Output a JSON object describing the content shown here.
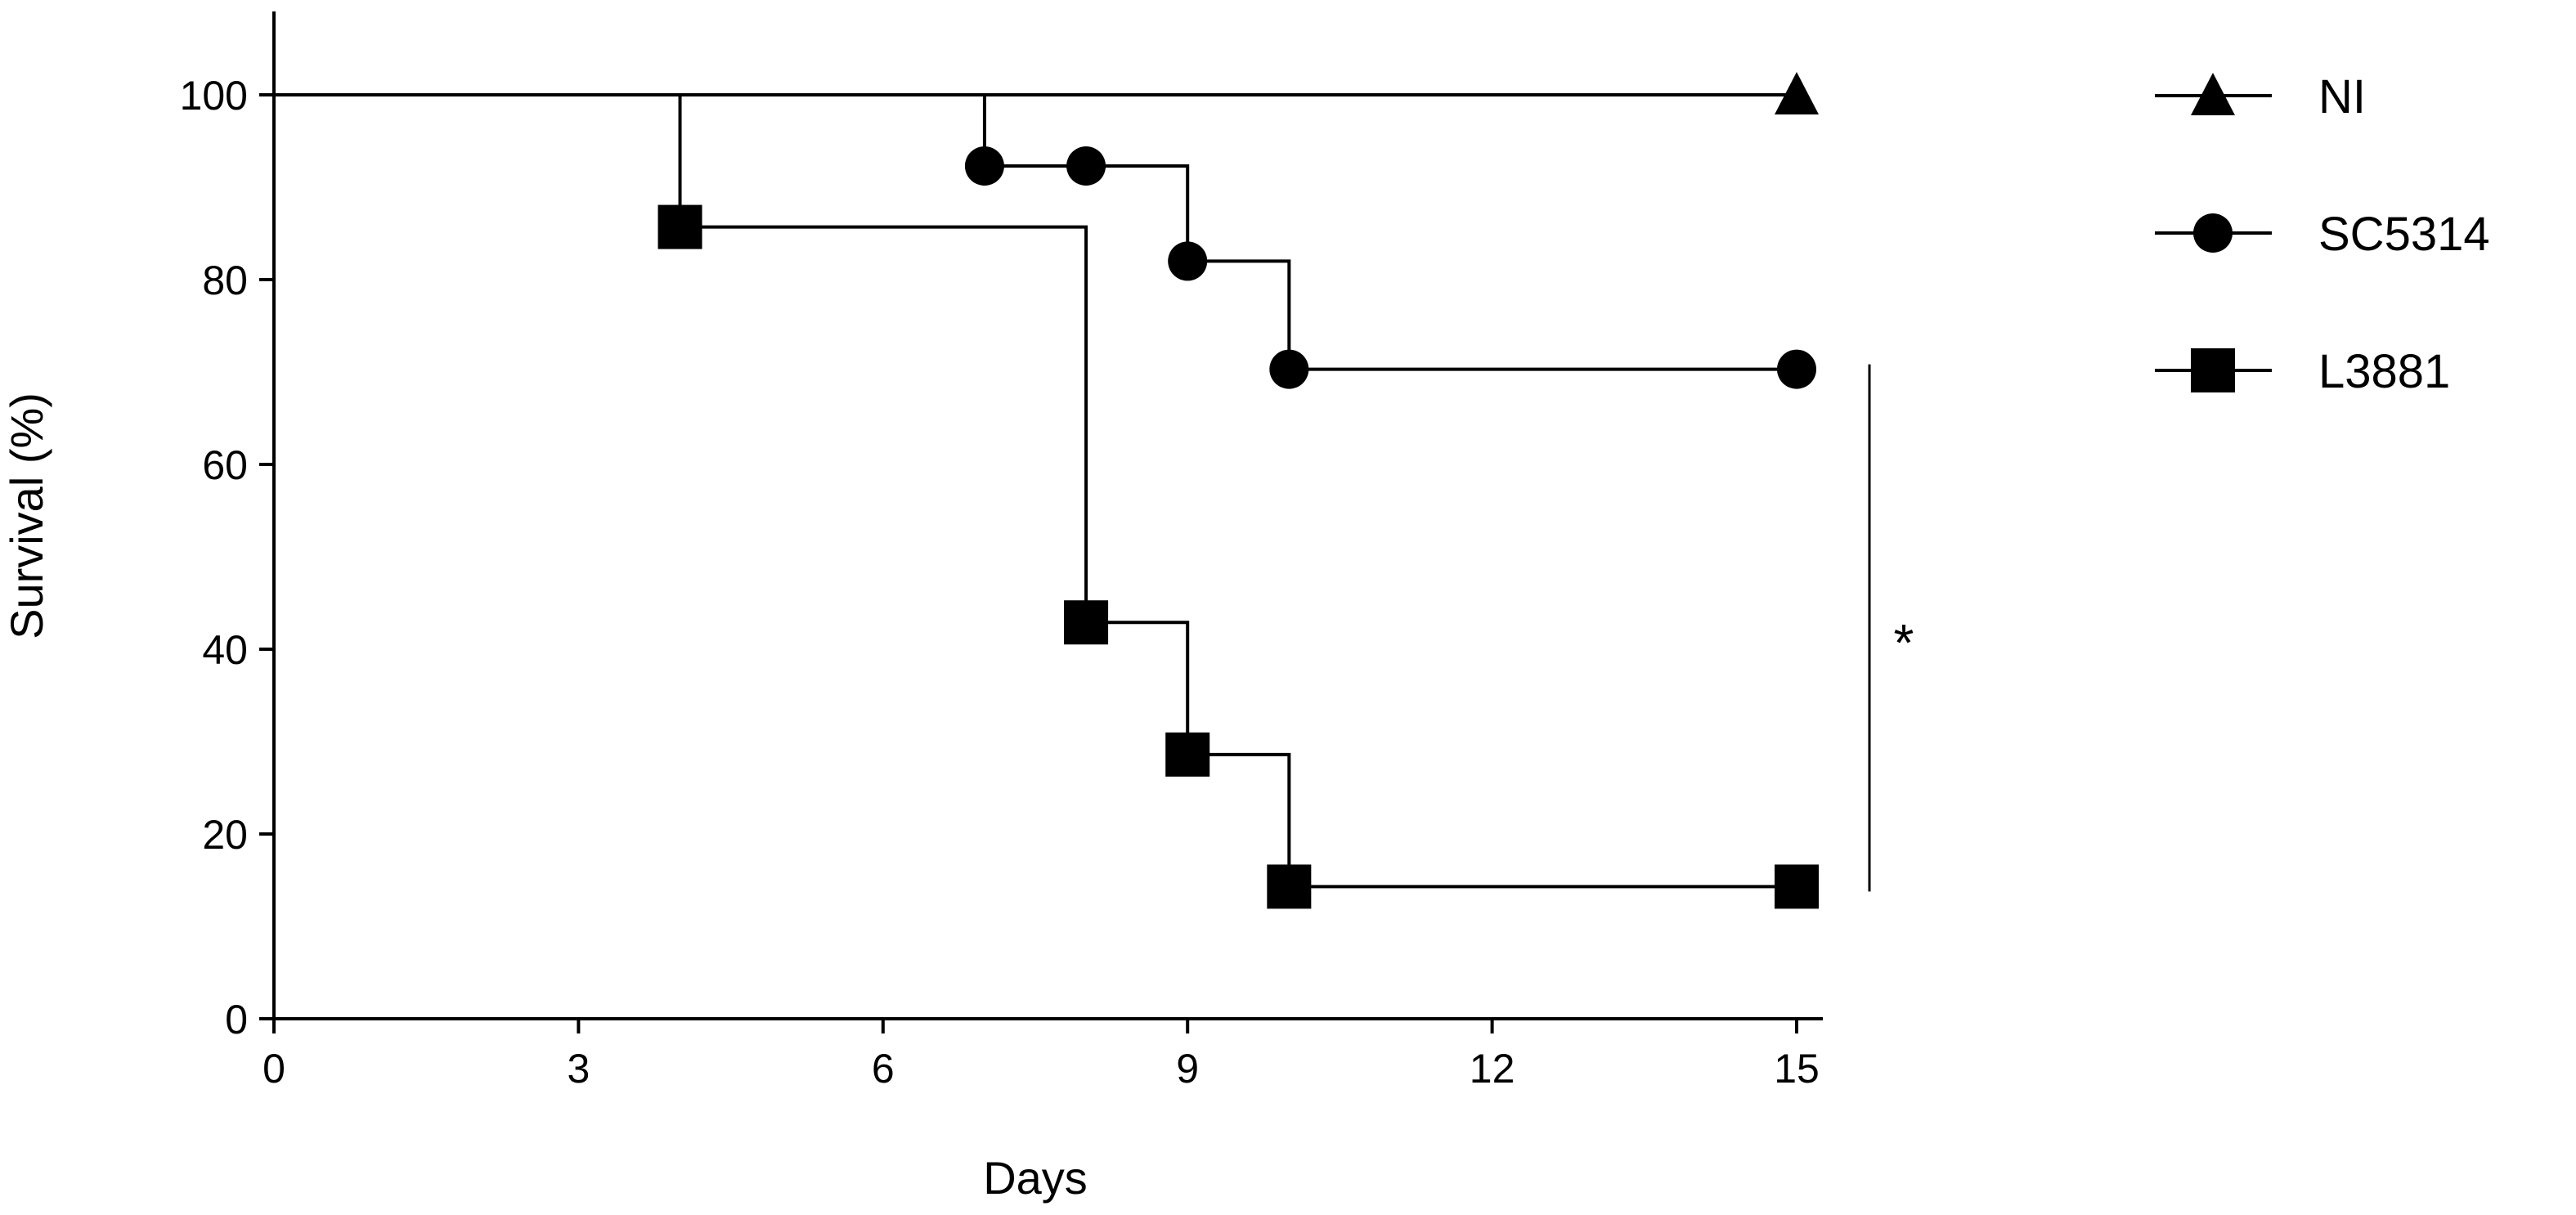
{
  "chart_data": {
    "type": "line",
    "xlabel": "Days",
    "ylabel": "Survival (%)",
    "xlim": [
      0,
      15
    ],
    "ylim": [
      0,
      100
    ],
    "xticks": [
      0,
      3,
      6,
      9,
      12,
      15
    ],
    "yticks": [
      0,
      20,
      40,
      60,
      80,
      100
    ],
    "step": true,
    "grid": false,
    "legend_position": "top-right",
    "series": [
      {
        "name": "NI",
        "marker": "triangle",
        "steps": [
          [
            0,
            100
          ],
          [
            15,
            100
          ]
        ],
        "markers": [
          [
            15,
            100
          ]
        ]
      },
      {
        "name": "SC5314",
        "marker": "circle",
        "steps": [
          [
            0,
            100
          ],
          [
            7,
            92.3
          ],
          [
            9,
            82
          ],
          [
            10,
            70.3
          ],
          [
            15,
            70.3
          ]
        ],
        "markers": [
          [
            7,
            92.3
          ],
          [
            8,
            92.3
          ],
          [
            9,
            82
          ],
          [
            10,
            70.3
          ],
          [
            15,
            70.3
          ]
        ]
      },
      {
        "name": "L3881",
        "marker": "square",
        "steps": [
          [
            0,
            100
          ],
          [
            4,
            85.7
          ],
          [
            8,
            42.9
          ],
          [
            9,
            28.6
          ],
          [
            10,
            14.3
          ],
          [
            15,
            14.3
          ]
        ],
        "markers": [
          [
            4,
            85.7
          ],
          [
            8,
            42.9
          ],
          [
            9,
            28.6
          ],
          [
            10,
            14.3
          ],
          [
            15,
            14.3
          ]
        ]
      }
    ],
    "annotations": [
      {
        "text": "*",
        "between": [
          "SC5314",
          "L3881"
        ]
      }
    ]
  }
}
